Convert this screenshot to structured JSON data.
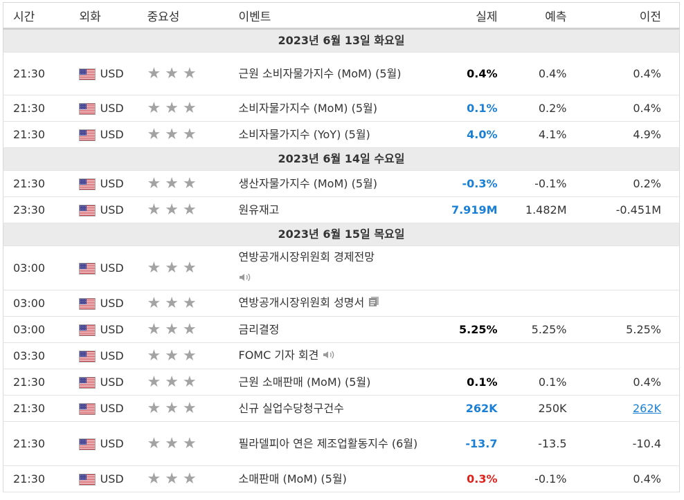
{
  "header": {
    "time": "시간",
    "currency": "외화",
    "importance": "중요성",
    "event": "이벤트",
    "actual": "실제",
    "forecast": "예측",
    "previous": "이전"
  },
  "groups": [
    {
      "date": "2023년 6월 13일 화요일",
      "rows": [
        {
          "time": "21:30",
          "currency": "USD",
          "event": "근원 소비자물가지수 (MoM) (5월)",
          "actual": "0.4%",
          "forecast": "0.4%",
          "previous": "0.4%"
        },
        {
          "time": "21:30",
          "currency": "USD",
          "event": "소비자물가지수 (MoM) (5월)",
          "actual": "0.1%",
          "forecast": "0.2%",
          "previous": "0.4%"
        },
        {
          "time": "21:30",
          "currency": "USD",
          "event": "소비자물가지수 (YoY) (5월)",
          "actual": "4.0%",
          "forecast": "4.1%",
          "previous": "4.9%"
        }
      ]
    },
    {
      "date": "2023년 6월 14일 수요일",
      "rows": [
        {
          "time": "21:30",
          "currency": "USD",
          "event": "생산자물가지수 (MoM) (5월)",
          "actual": "-0.3%",
          "forecast": "-0.1%",
          "previous": "0.2%"
        },
        {
          "time": "23:30",
          "currency": "USD",
          "event": "원유재고",
          "actual": "7.919M",
          "forecast": "1.482M",
          "previous": "-0.451M"
        }
      ]
    },
    {
      "date": "2023년 6월 15일 목요일",
      "rows": [
        {
          "time": "03:00",
          "currency": "USD",
          "event": "연방공개시장위원회 경제전망",
          "actual": "",
          "forecast": "",
          "previous": ""
        },
        {
          "time": "03:00",
          "currency": "USD",
          "event": "연방공개시장위원회 성명서",
          "actual": "",
          "forecast": "",
          "previous": ""
        },
        {
          "time": "03:00",
          "currency": "USD",
          "event": "금리결정",
          "actual": "5.25%",
          "forecast": "5.25%",
          "previous": "5.25%"
        },
        {
          "time": "03:30",
          "currency": "USD",
          "event": "FOMC 기자 회견",
          "actual": "",
          "forecast": "",
          "previous": ""
        },
        {
          "time": "21:30",
          "currency": "USD",
          "event": "근원 소매판매 (MoM) (5월)",
          "actual": "0.1%",
          "forecast": "0.1%",
          "previous": "0.4%"
        },
        {
          "time": "21:30",
          "currency": "USD",
          "event": "신규 실업수당청구건수",
          "actual": "262K",
          "forecast": "250K",
          "previous": "262K"
        },
        {
          "time": "21:30",
          "currency": "USD",
          "event": "필라델피아 연은 제조업활동지수 (6월)",
          "actual": "-13.7",
          "forecast": "-13.5",
          "previous": "-10.4"
        },
        {
          "time": "21:30",
          "currency": "USD",
          "event": "소매판매 (MoM) (5월)",
          "actual": "0.3%",
          "forecast": "-0.1%",
          "previous": "0.4%"
        }
      ]
    }
  ],
  "colors": {
    "better": "#1a7fd6",
    "worse": "#e0201b",
    "neutral": "#000000"
  },
  "icons": {
    "flag": "us-flag-icon",
    "star": "star-icon",
    "speaker": "speaker-icon",
    "document": "document-icon"
  }
}
